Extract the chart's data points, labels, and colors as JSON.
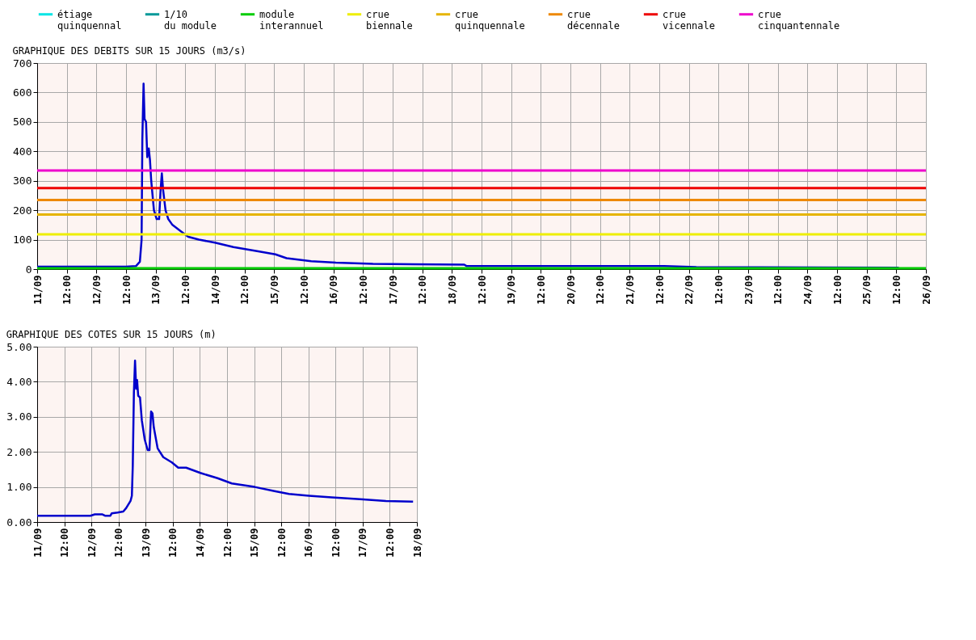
{
  "chart_data": [
    {
      "type": "line",
      "title": "GRAPHIQUE DES DEBITS SUR 15 JOURS (m3/s)",
      "legend": "top",
      "grid": true,
      "line_style": "solid",
      "marker": "none",
      "xlim": [
        "--09-11",
        "--09-26"
      ],
      "xticks": [
        {
          "value": "--09-11",
          "label": "11/09"
        },
        {
          "value": "--09-11T12:00",
          "label": "12:00"
        },
        {
          "value": "--09-12",
          "label": "12/09"
        },
        {
          "value": "--09-12T12:00",
          "label": "12:00"
        },
        {
          "value": "--09-13",
          "label": "13/09"
        },
        {
          "value": "--09-13T12:00",
          "label": "12:00"
        },
        {
          "value": "--09-14",
          "label": "14/09"
        },
        {
          "value": "--09-14T12:00",
          "label": "12:00"
        },
        {
          "value": "--09-15",
          "label": "15/09"
        },
        {
          "value": "--09-15T12:00",
          "label": "12:00"
        },
        {
          "value": "--09-16",
          "label": "16/09"
        },
        {
          "value": "--09-16T12:00",
          "label": "12:00"
        },
        {
          "value": "--09-17",
          "label": "17/09"
        },
        {
          "value": "--09-17T12:00",
          "label": "12:00"
        },
        {
          "value": "--09-18",
          "label": "18/09"
        },
        {
          "value": "--09-18T12:00",
          "label": "12:00"
        },
        {
          "value": "--09-19",
          "label": "19/09"
        },
        {
          "value": "--09-19T12:00",
          "label": "12:00"
        },
        {
          "value": "--09-20",
          "label": "20/09"
        },
        {
          "value": "--09-20T12:00",
          "label": "12:00"
        },
        {
          "value": "--09-21",
          "label": "21/09"
        },
        {
          "value": "--09-21T12:00",
          "label": "12:00"
        },
        {
          "value": "--09-22",
          "label": "22/09"
        },
        {
          "value": "--09-22T12:00",
          "label": "12:00"
        },
        {
          "value": "--09-23",
          "label": "23/09"
        },
        {
          "value": "--09-23T12:00",
          "label": "12:00"
        },
        {
          "value": "--09-24",
          "label": "24/09"
        },
        {
          "value": "--09-24T12:00",
          "label": "12:00"
        },
        {
          "value": "--09-25",
          "label": "25/09"
        },
        {
          "value": "--09-25T12:00",
          "label": "12:00"
        },
        {
          "value": "--09-26",
          "label": "26/09"
        }
      ],
      "ylim": [
        0,
        700
      ],
      "yticks": [
        0,
        100,
        200,
        300,
        400,
        500,
        600,
        700
      ],
      "series": [
        {
          "color": "#0000cc",
          "x": [
            "--09-11T00:00",
            "--09-12T00:00",
            "--09-12T12:00",
            "--09-12T16:00",
            "--09-12T17:36",
            "--09-12T18:18",
            "--09-12T18:36",
            "--09-12T19:06",
            "--09-12T19:30",
            "--09-12T20:06",
            "--09-12T20:36",
            "--09-12T21:12",
            "--09-12T21:42",
            "--09-12T22:12",
            "--09-12T23:18",
            "--09-13T00:24",
            "--09-13T01:24",
            "--09-13T02:00",
            "--09-13T02:30",
            "--09-13T03:00",
            "--09-13T04:00",
            "--09-13T05:06",
            "--09-13T06:48",
            "--09-13T10:00",
            "--09-13T13:12",
            "--09-13T17:30",
            "--09-14T00:00",
            "--09-14T07:30",
            "--09-14T18:00",
            "--09-15T00:30",
            "--09-15T05:00",
            "--09-15T15:00",
            "--09-16T01:00",
            "--09-16T16:00",
            "--09-18T05:00",
            "--09-18T06:00",
            "--09-21T14:00",
            "--09-22T03:00",
            "--09-25T13:00"
          ],
          "values": [
            8,
            8,
            8,
            10,
            25,
            100,
            440,
            630,
            510,
            500,
            380,
            410,
            370,
            300,
            200,
            170,
            170,
            270,
            325,
            270,
            200,
            170,
            150,
            130,
            110,
            100,
            90,
            75,
            60,
            50,
            37,
            27,
            22,
            18,
            15,
            10,
            10,
            7,
            5
          ]
        }
      ],
      "ref_lines": [
        {
          "axis": "y",
          "value": null,
          "label": "étiage quinquennal",
          "color": "#00e5e5"
        },
        {
          "axis": "y",
          "value": null,
          "label": "1/10 du module",
          "color": "#009999"
        },
        {
          "axis": "y",
          "value": 3,
          "label": "module interannuel",
          "color": "#00cc00"
        },
        {
          "axis": "y",
          "value": 118,
          "label": "crue biennale",
          "color": "#eeee00"
        },
        {
          "axis": "y",
          "value": 185,
          "label": "crue quinquennale",
          "color": "#e6b400"
        },
        {
          "axis": "y",
          "value": 235,
          "label": "crue décennale",
          "color": "#ee8800"
        },
        {
          "axis": "y",
          "value": 275,
          "label": "crue vicennale",
          "color": "#ee0000"
        },
        {
          "axis": "y",
          "value": 335,
          "label": "crue cinquantennale",
          "color": "#ee00cc"
        }
      ]
    },
    {
      "type": "line",
      "title": "GRAPHIQUE DES COTES SUR 15 JOURS (m)",
      "grid": true,
      "line_style": "solid",
      "marker": "none",
      "xlim": [
        "--09-11",
        "--09-18"
      ],
      "xticks": [
        {
          "value": "--09-11",
          "label": "11/09"
        },
        {
          "value": "--09-11T12:00",
          "label": "12:00"
        },
        {
          "value": "--09-12",
          "label": "12/09"
        },
        {
          "value": "--09-12T12:00",
          "label": "12:00"
        },
        {
          "value": "--09-13",
          "label": "13/09"
        },
        {
          "value": "--09-13T12:00",
          "label": "12:00"
        },
        {
          "value": "--09-14",
          "label": "14/09"
        },
        {
          "value": "--09-14T12:00",
          "label": "12:00"
        },
        {
          "value": "--09-15",
          "label": "15/09"
        },
        {
          "value": "--09-15T12:00",
          "label": "12:00"
        },
        {
          "value": "--09-16",
          "label": "16/09"
        },
        {
          "value": "--09-16T12:00",
          "label": "12:00"
        },
        {
          "value": "--09-17",
          "label": "17/09"
        },
        {
          "value": "--09-17T12:00",
          "label": "12:00"
        },
        {
          "value": "--09-18",
          "label": "18/09"
        }
      ],
      "ylim": [
        0,
        5
      ],
      "yticks": [
        {
          "value": 0,
          "label": "0.00"
        },
        {
          "value": 1,
          "label": "1.00"
        },
        {
          "value": 2,
          "label": "2.00"
        },
        {
          "value": 3,
          "label": "3.00"
        },
        {
          "value": 4,
          "label": "4.00"
        },
        {
          "value": 5,
          "label": "5.00"
        }
      ],
      "series": [
        {
          "color": "#0000cc",
          "x": [
            "--09-11T00:00",
            "--09-11T23:36",
            "--09-12T01:30",
            "--09-12T04:42",
            "--09-12T06:00",
            "--09-12T08:24",
            "--09-12T09:00",
            "--09-12T11:36",
            "--09-12T14:06",
            "--09-12T15:24",
            "--09-12T17:18",
            "--09-12T17:54",
            "--09-12T18:18",
            "--09-12T18:48",
            "--09-12T19:18",
            "--09-12T19:48",
            "--09-12T20:12",
            "--09-12T20:42",
            "--09-12T21:30",
            "--09-12T22:18",
            "--09-12T23:36",
            "--09-13T00:54",
            "--09-13T01:42",
            "--09-13T02:24",
            "--09-13T03:00",
            "--09-13T03:36",
            "--09-13T05:18",
            "--09-13T07:48",
            "--09-13T11:36",
            "--09-13T14:24",
            "--09-13T17:54",
            "--09-14T00:12",
            "--09-14T07:48",
            "--09-14T14:06",
            "--09-15T00:12",
            "--09-15T09:00",
            "--09-15T15:24",
            "--09-16T00:12",
            "--09-16T10:18",
            "--09-16T22:54",
            "--09-17T10:18",
            "--09-17T22:18"
          ],
          "values": [
            0.18,
            0.18,
            0.22,
            0.22,
            0.18,
            0.18,
            0.25,
            0.27,
            0.3,
            0.4,
            0.6,
            0.75,
            1.6,
            3.7,
            4.6,
            3.8,
            4.05,
            3.6,
            3.55,
            2.9,
            2.35,
            2.05,
            2.05,
            3.15,
            3.1,
            2.7,
            2.1,
            1.85,
            1.7,
            1.55,
            1.55,
            1.4,
            1.25,
            1.1,
            1.0,
            0.88,
            0.8,
            0.75,
            0.7,
            0.65,
            0.6,
            0.58
          ]
        }
      ]
    }
  ]
}
